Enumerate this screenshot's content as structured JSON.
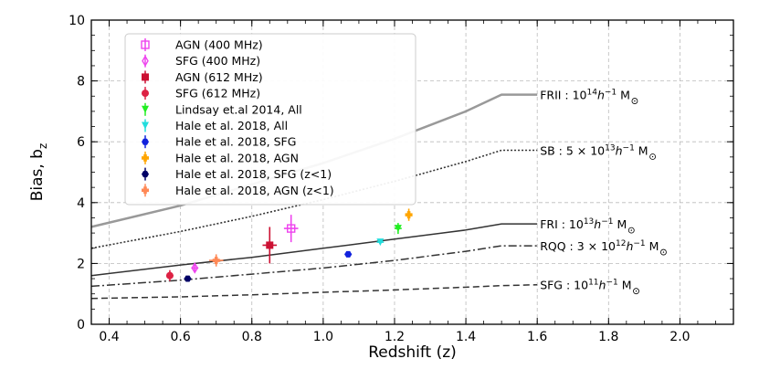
{
  "chart_data": {
    "type": "scatter",
    "title": "",
    "xlabel": "Redshift (z)",
    "ylabel": "Bias, b",
    "ylabel_sub": "z",
    "xlim": [
      0.35,
      2.15
    ],
    "ylim": [
      0,
      10
    ],
    "xticks": [
      0.4,
      0.6,
      0.8,
      1.0,
      1.2,
      1.4,
      1.6,
      1.8,
      2.0
    ],
    "yticks": [
      0,
      2,
      4,
      6,
      8,
      10
    ],
    "xtick_labels": [
      "0.4",
      "0.6",
      "0.8",
      "1.0",
      "1.2",
      "1.4",
      "1.6",
      "1.8",
      "2.0"
    ],
    "ytick_labels": [
      "0",
      "2",
      "4",
      "6",
      "8",
      "10"
    ],
    "grid": true,
    "legend_position": "top-left",
    "series": [
      {
        "name": "AGN (400 MHz)",
        "color": "#ee44ee",
        "marker": "square-open",
        "x": [
          0.91
        ],
        "y": [
          3.15
        ],
        "yerr": [
          0.45
        ],
        "xerr": [
          0.02
        ]
      },
      {
        "name": "SFG (400 MHz)",
        "color": "#ee44ee",
        "marker": "diamond-open",
        "x": [
          0.64
        ],
        "y": [
          1.85
        ],
        "yerr": [
          0.12
        ],
        "xerr": [
          0.01
        ]
      },
      {
        "name": "AGN (612 MHz)",
        "color": "#cc1133",
        "marker": "square",
        "x": [
          0.85
        ],
        "y": [
          2.6
        ],
        "yerr": [
          0.6
        ],
        "xerr": [
          0.02
        ]
      },
      {
        "name": "SFG (612 MHz)",
        "color": "#dd2244",
        "marker": "circle",
        "x": [
          0.57
        ],
        "y": [
          1.6
        ],
        "yerr": [
          0.18
        ],
        "xerr": [
          0.01
        ]
      },
      {
        "name": "Lindsay et.al 2014, All",
        "color": "#22ee22",
        "marker": "triangle-down",
        "x": [
          1.21
        ],
        "y": [
          3.15
        ],
        "yerr": [
          0.18
        ],
        "xerr": [
          0.01
        ]
      },
      {
        "name": "Hale et al. 2018, All",
        "color": "#22dddd",
        "marker": "triangle-down",
        "x": [
          1.16
        ],
        "y": [
          2.7
        ],
        "yerr": [
          0.05
        ],
        "xerr": [
          0.01
        ]
      },
      {
        "name": "Hale et al. 2018, SFG",
        "color": "#1122dd",
        "marker": "hexagon",
        "x": [
          1.07
        ],
        "y": [
          2.3
        ],
        "yerr": [
          0.05
        ],
        "xerr": [
          0.01
        ]
      },
      {
        "name": "Hale et al. 2018, AGN",
        "color": "#ffa500",
        "marker": "plus",
        "x": [
          1.24
        ],
        "y": [
          3.6
        ],
        "yerr": [
          0.2
        ],
        "xerr": [
          0.01
        ]
      },
      {
        "name": "Hale et al. 2018, SFG (z<1)",
        "color": "#000066",
        "marker": "hexagon",
        "x": [
          0.62
        ],
        "y": [
          1.5
        ],
        "yerr": [
          0.04
        ],
        "xerr": [
          0.01
        ]
      },
      {
        "name": "Hale et al. 2018, AGN (z<1)",
        "color": "#ff8855",
        "marker": "plus",
        "x": [
          0.7
        ],
        "y": [
          2.1
        ],
        "yerr": [
          0.2
        ],
        "xerr": [
          0.02
        ]
      }
    ],
    "curves": [
      {
        "label_prefix": "FRII : 10",
        "label_sup": "14",
        "label_rest": "h",
        "label_rest2": " M",
        "label_sup2": "−1",
        "color": "#999999",
        "style": "solid",
        "width": 2.5,
        "x": [
          0.35,
          0.6,
          0.8,
          1.0,
          1.2,
          1.4,
          1.5,
          1.6
        ],
        "y": [
          3.2,
          3.9,
          4.6,
          5.3,
          6.1,
          7.0,
          7.55,
          7.55
        ]
      },
      {
        "label_prefix": "SB : 5 × 10",
        "label_sup": "13",
        "label_rest": "h",
        "label_rest2": " M",
        "label_sup2": "−1",
        "color": "#333333",
        "style": "dotted",
        "width": 1.6,
        "x": [
          0.35,
          0.6,
          0.8,
          1.0,
          1.2,
          1.4,
          1.5,
          1.6
        ],
        "y": [
          2.5,
          3.05,
          3.55,
          4.1,
          4.7,
          5.35,
          5.72,
          5.72
        ]
      },
      {
        "label_prefix": "FRI : 10",
        "label_sup": "13",
        "label_rest": "h",
        "label_rest2": " M",
        "label_sup2": "−1",
        "color": "#333333",
        "style": "solid",
        "width": 1.5,
        "x": [
          0.35,
          0.6,
          0.8,
          1.0,
          1.2,
          1.4,
          1.5,
          1.6
        ],
        "y": [
          1.6,
          1.95,
          2.2,
          2.5,
          2.8,
          3.1,
          3.3,
          3.3
        ]
      },
      {
        "label_prefix": "RQQ : 3 × 10",
        "label_sup": "12",
        "label_rest": "h",
        "label_rest2": " M",
        "label_sup2": "−1",
        "color": "#333333",
        "style": "dashdot",
        "width": 1.5,
        "x": [
          0.35,
          0.6,
          0.8,
          1.0,
          1.2,
          1.4,
          1.5,
          1.6
        ],
        "y": [
          1.25,
          1.45,
          1.65,
          1.85,
          2.1,
          2.4,
          2.58,
          2.58
        ]
      },
      {
        "label_prefix": "SFG : 10",
        "label_sup": "11",
        "label_rest": "h",
        "label_rest2": " M",
        "label_sup2": "−1",
        "color": "#333333",
        "style": "dashed",
        "width": 1.5,
        "x": [
          0.35,
          0.6,
          0.8,
          1.0,
          1.2,
          1.4,
          1.5,
          1.6
        ],
        "y": [
          0.85,
          0.9,
          0.97,
          1.05,
          1.13,
          1.22,
          1.27,
          1.3
        ]
      }
    ]
  }
}
